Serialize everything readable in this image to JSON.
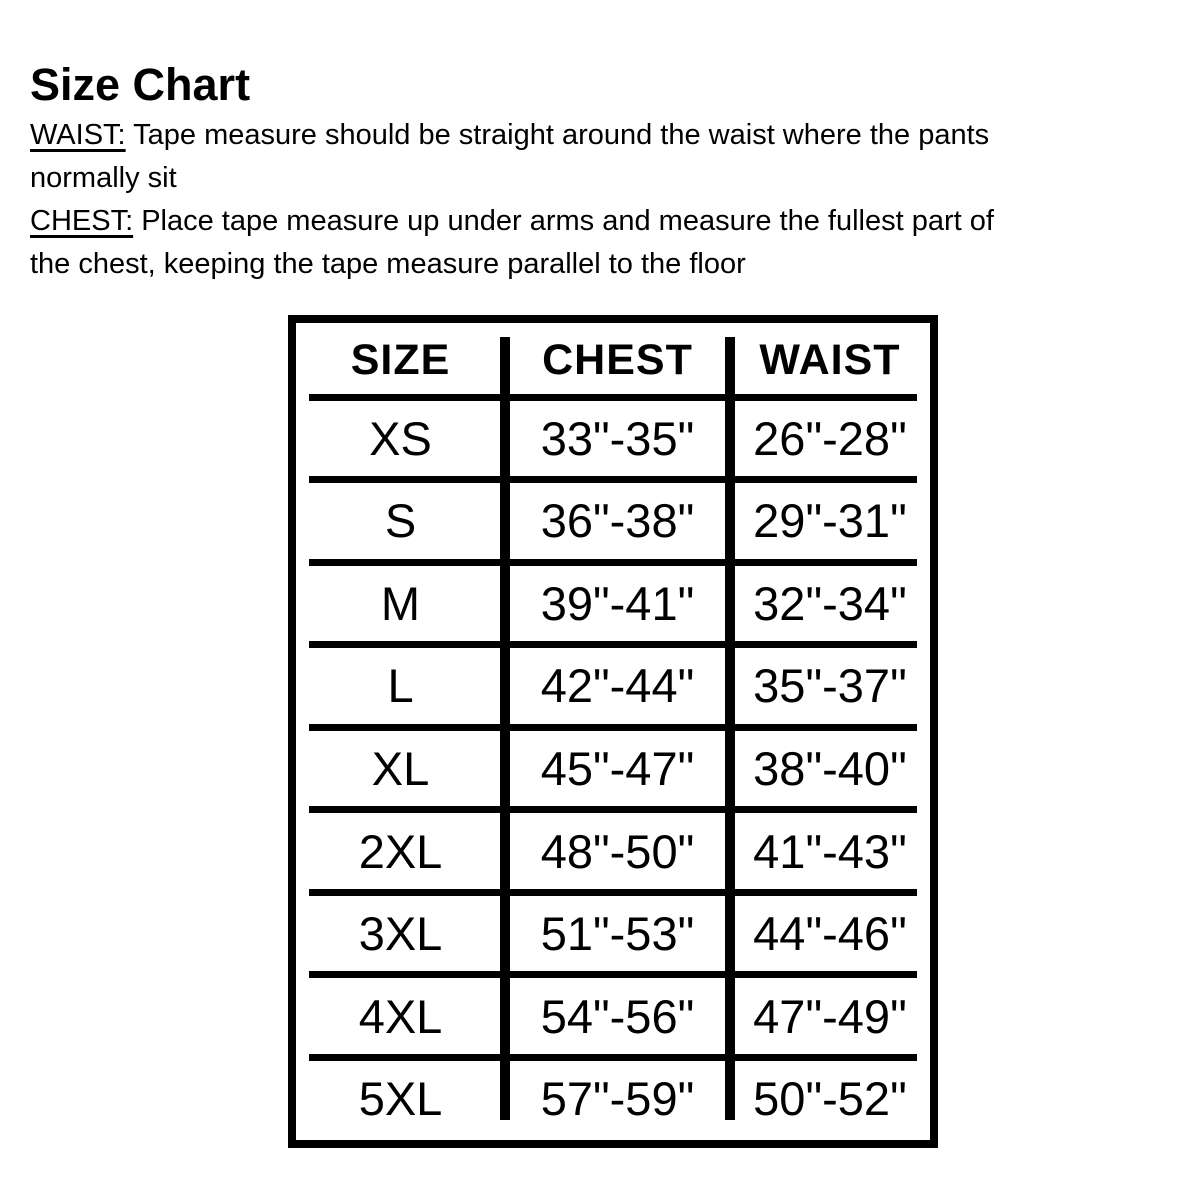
{
  "page": {
    "title": "Size Chart"
  },
  "instructions": [
    {
      "label": "WAIST:",
      "text": " Tape measure should be straight around the waist where the pants\nnormally sit"
    },
    {
      "label": "CHEST:",
      "text": " Place tape measure up under arms and measure the fullest part of\nthe chest, keeping the tape measure parallel to the floor"
    }
  ],
  "table": {
    "columns": [
      "SIZE",
      "CHEST",
      "WAIST"
    ],
    "rows": [
      {
        "size": "XS",
        "chest": "33\"-35\"",
        "waist": "26\"-28\""
      },
      {
        "size": "S",
        "chest": "36\"-38\"",
        "waist": "29\"-31\""
      },
      {
        "size": "M",
        "chest": "39\"-41\"",
        "waist": "32\"-34\""
      },
      {
        "size": "L",
        "chest": "42\"-44\"",
        "waist": "35\"-37\""
      },
      {
        "size": "XL",
        "chest": "45\"-47\"",
        "waist": "38\"-40\""
      },
      {
        "size": "2XL",
        "chest": "48\"-50\"",
        "waist": "41\"-43\""
      },
      {
        "size": "3XL",
        "chest": "51\"-53\"",
        "waist": "44\"-46\""
      },
      {
        "size": "4XL",
        "chest": "54\"-56\"",
        "waist": "47\"-49\""
      },
      {
        "size": "5XL",
        "chest": "57\"-59\"",
        "waist": "50\"-52\""
      }
    ]
  },
  "colors": {
    "text": "#000000",
    "background": "#ffffff",
    "table_border": "#000000"
  }
}
